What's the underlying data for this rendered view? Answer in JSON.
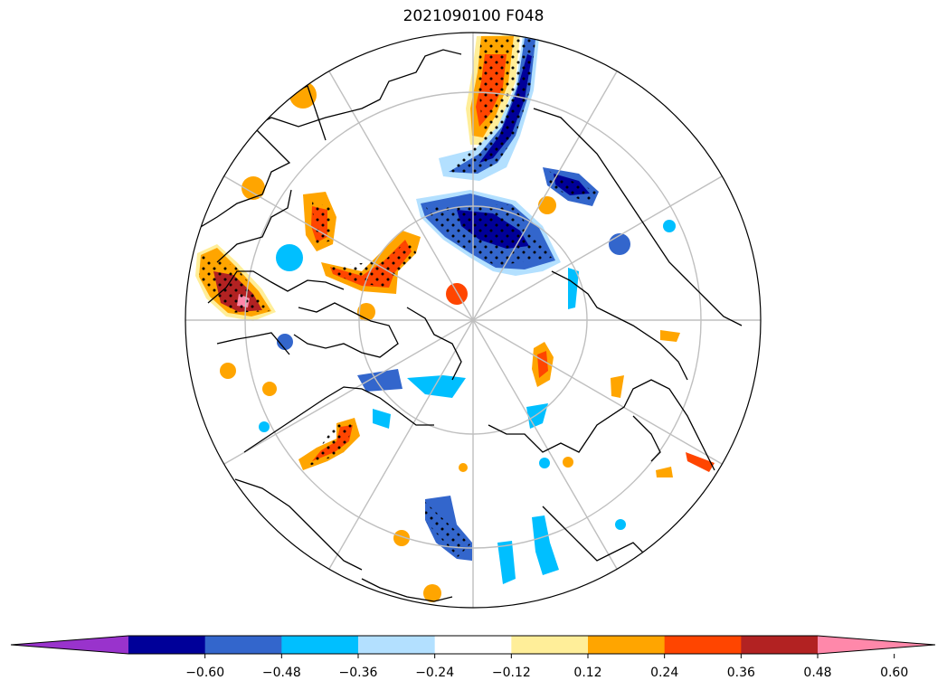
{
  "title": "2021090100 F048",
  "colorbar": {
    "colors": [
      "#9933cc",
      "#000099",
      "#3366cc",
      "#00bfff",
      "#b3e0ff",
      "#ffffff",
      "#ffee99",
      "#ffa500",
      "#ff4500",
      "#b22222",
      "#ff88aa"
    ],
    "boundaries": [
      -0.6,
      -0.48,
      -0.36,
      -0.24,
      -0.12,
      0.12,
      0.24,
      0.36,
      0.48,
      0.6
    ],
    "tick_labels": [
      "−0.60",
      "−0.48",
      "−0.36",
      "−0.24",
      "−0.12",
      "0.12",
      "0.24",
      "0.36",
      "0.48",
      "0.60"
    ],
    "extend": "both"
  },
  "map": {
    "projection": "north-polar-stereographic",
    "gridlines": true,
    "stippling": true,
    "coastlines": true
  }
}
